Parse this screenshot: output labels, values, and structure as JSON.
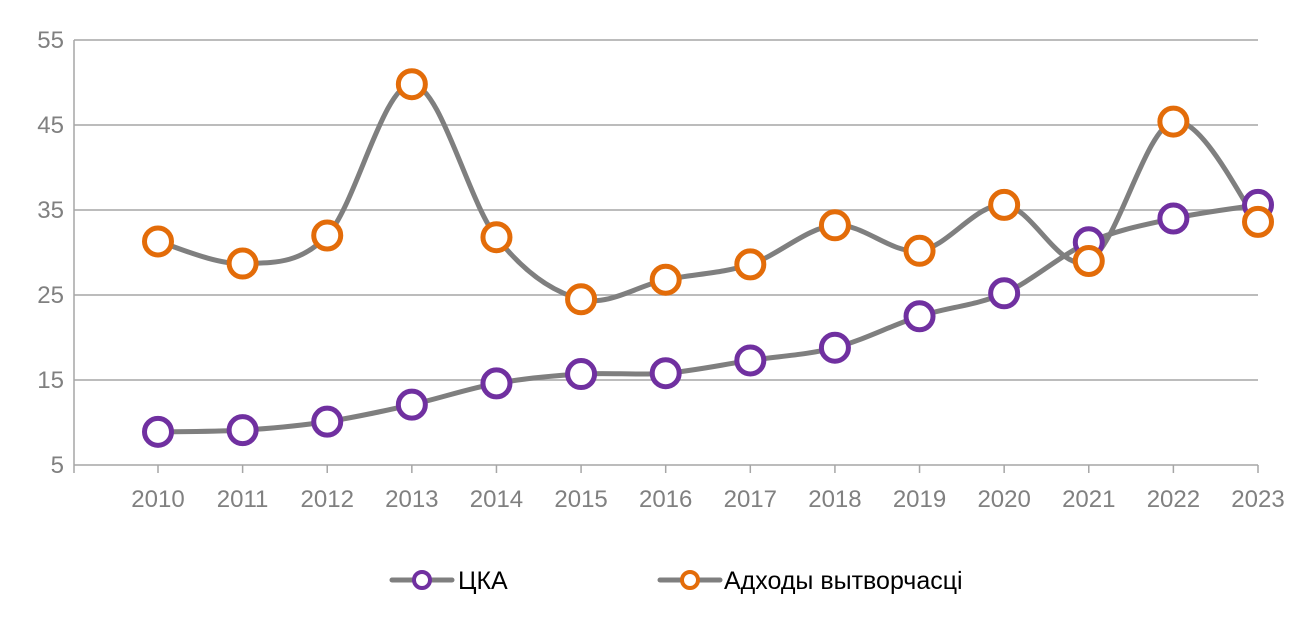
{
  "chart_data": {
    "type": "line",
    "title": "",
    "xlabel": "",
    "ylabel": "",
    "categories": [
      "2010",
      "2011",
      "2012",
      "2013",
      "2014",
      "2015",
      "2016",
      "2017",
      "2018",
      "2019",
      "2020",
      "2021",
      "2022",
      "2023"
    ],
    "ylim": [
      5,
      55
    ],
    "yticks": [
      "5",
      "15",
      "25",
      "35",
      "45",
      "55"
    ],
    "grid": true,
    "legend_position": "bottom",
    "line_color": "#7f7f7f",
    "series": [
      {
        "name": "ЦКА",
        "marker_color": "#7030a0",
        "values": [
          8.9,
          9.1,
          10.1,
          12.1,
          14.6,
          15.7,
          15.8,
          17.3,
          18.8,
          22.5,
          25.2,
          31.2,
          34.0,
          35.6
        ]
      },
      {
        "name": "Адходы вытворчасці",
        "marker_color": "#e36c09",
        "values": [
          31.3,
          28.7,
          32.0,
          49.8,
          31.8,
          24.5,
          26.8,
          28.6,
          33.2,
          30.2,
          35.6,
          29.0,
          45.4,
          33.6
        ]
      }
    ]
  }
}
